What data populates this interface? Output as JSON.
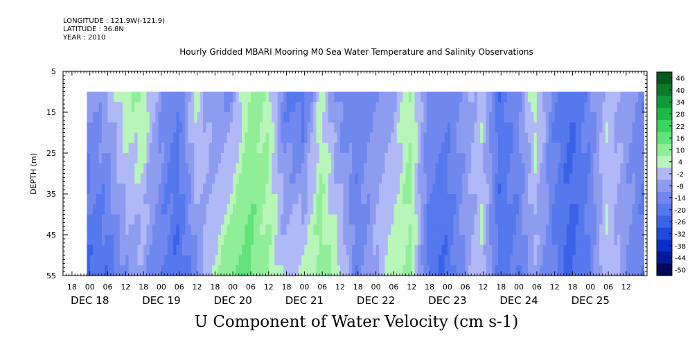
{
  "header": {
    "longitude": "LONGITUDE : 121.9W(-121.9)",
    "latitude": "LATITUDE : 36.8N",
    "year": "YEAR : 2010"
  },
  "chart_data": {
    "type": "heatmap",
    "title": "Hourly Gridded MBARI Mooring M0 Sea Water Temperature and Salinity Observations",
    "xlabel": "U Component of Water Velocity (cm s-1)",
    "ylabel": "DEPTH (m)",
    "y_range": [
      5,
      55
    ],
    "y_reversed": true,
    "y_ticks": [
      5,
      15,
      25,
      35,
      45,
      55
    ],
    "x_start": "Dec 17, 2010 15:00",
    "x_end": "Dec 25, 2010 19:00",
    "x_hour_ticks": [
      "18",
      "00",
      "06",
      "12",
      "18",
      "00",
      "06",
      "12",
      "18",
      "00",
      "06",
      "12",
      "18",
      "00",
      "06",
      "12",
      "18",
      "00",
      "06",
      "12",
      "18",
      "00",
      "06",
      "12",
      "18",
      "00",
      "06",
      "12",
      "18",
      "00",
      "06",
      "12"
    ],
    "x_day_labels": [
      "DEC 18",
      "DEC 19",
      "DEC 20",
      "DEC 21",
      "DEC 22",
      "DEC 23",
      "DEC 24",
      "DEC 25"
    ],
    "data_start": "Dec 17, 2010 23:00",
    "data_end": "Dec 25, 2010 18:00",
    "data_depth_range": [
      10,
      55
    ],
    "colorbar_levels": [
      -50,
      -44,
      -38,
      -32,
      -26,
      -20,
      -14,
      -8,
      -2,
      4,
      10,
      16,
      22,
      28,
      34,
      40,
      46
    ],
    "colorbar_labels": [
      "46",
      "40",
      "34",
      "28",
      "22",
      "16",
      "10",
      "4",
      "-2",
      "-8",
      "-14",
      "-20",
      "-26",
      "-32",
      "-38",
      "-44",
      "-50"
    ],
    "u_by_time": {
      "hours_from_data_start": [
        0,
        6,
        12,
        18,
        24,
        30,
        36,
        42,
        48,
        54,
        60,
        66,
        72,
        78,
        84,
        90,
        96,
        102,
        108,
        114,
        120,
        126,
        132,
        138,
        144,
        150,
        156,
        162,
        168,
        174,
        180,
        186
      ],
      "u_near_surface": [
        -8,
        -4,
        8,
        10,
        -6,
        -14,
        6,
        -8,
        -8,
        12,
        10,
        -14,
        -18,
        6,
        -10,
        -12,
        -8,
        -4,
        10,
        -10,
        -12,
        -6,
        2,
        -18,
        -10,
        8,
        -12,
        -20,
        -12,
        2,
        -4,
        -12
      ],
      "u_near_bottom": [
        -20,
        -18,
        -8,
        -4,
        -14,
        -20,
        -10,
        6,
        16,
        18,
        10,
        2,
        6,
        14,
        6,
        -12,
        -2,
        8,
        12,
        -16,
        -20,
        -8,
        4,
        -18,
        -14,
        -4,
        -14,
        -22,
        -14,
        4,
        -6,
        -14
      ]
    }
  }
}
